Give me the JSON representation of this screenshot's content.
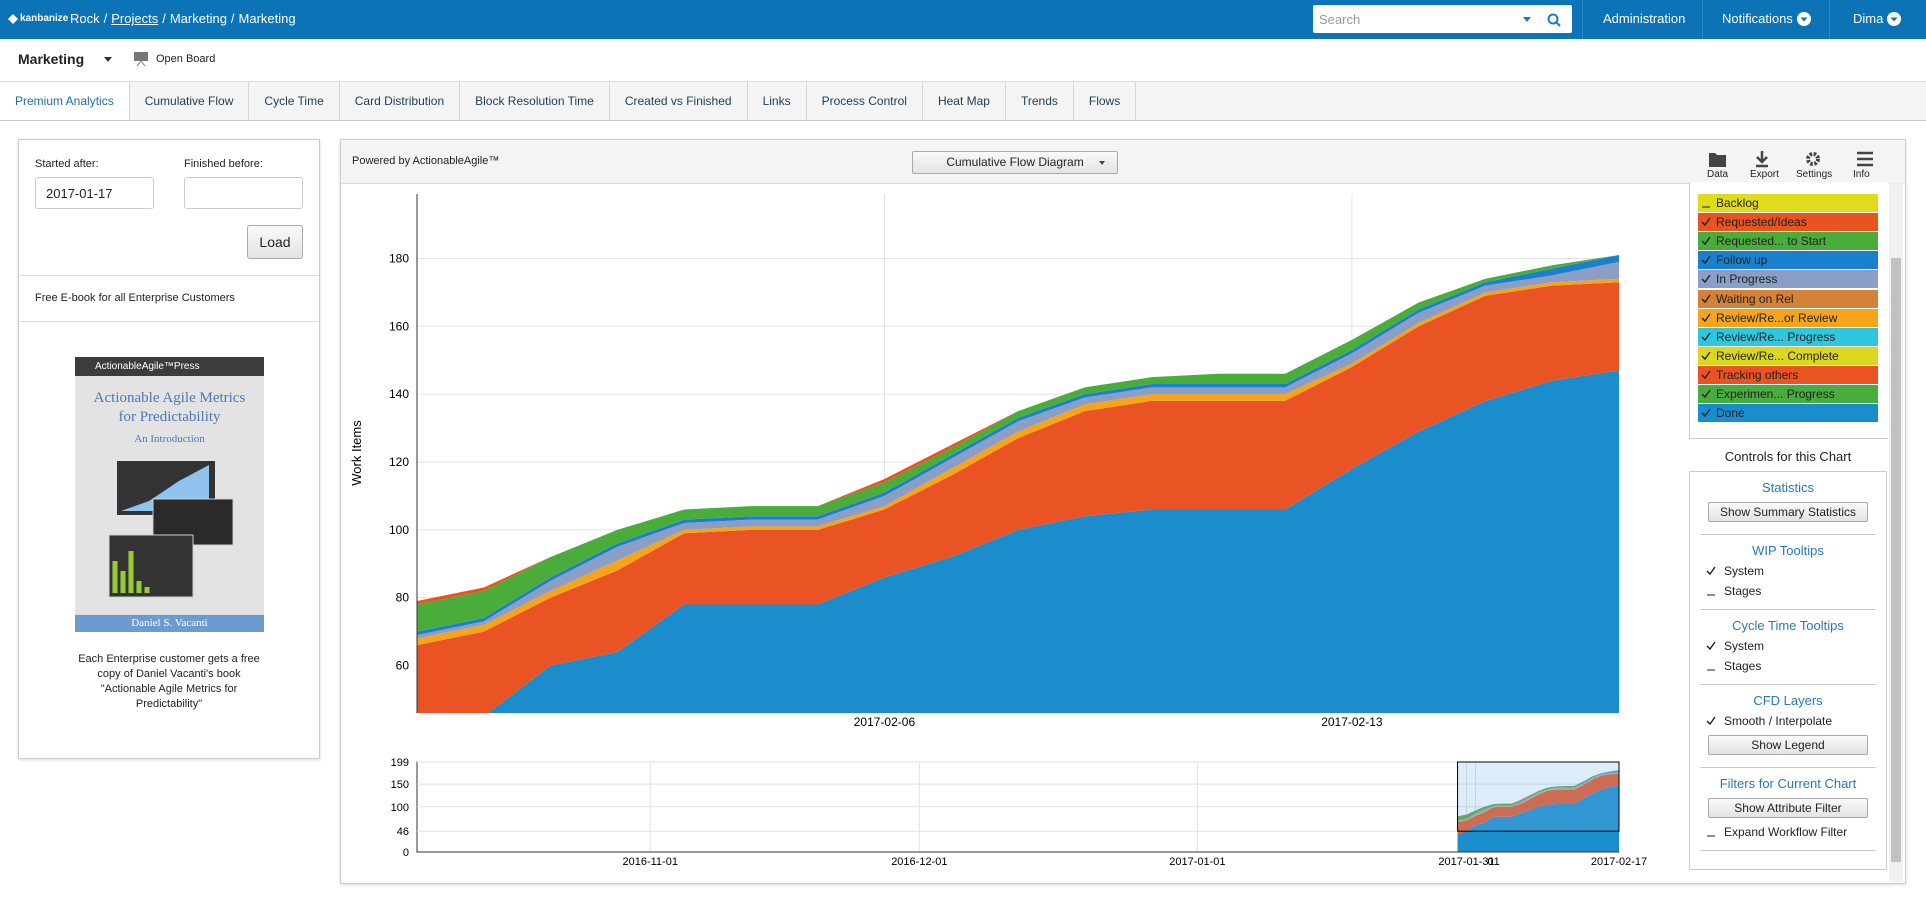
{
  "header": {
    "logo": "kanbanize",
    "breadcrumb": [
      "Rock",
      "Projects",
      "Marketing",
      "Marketing"
    ],
    "separator": "/",
    "search_placeholder": "Search",
    "nav": [
      "Administration",
      "Notifications",
      "Dima"
    ]
  },
  "subheader": {
    "board": "Marketing",
    "open_board": "Open Board"
  },
  "tabs": [
    "Premium Analytics",
    "Cumulative Flow",
    "Cycle Time",
    "Card Distribution",
    "Block Resolution Time",
    "Created vs Finished",
    "Links",
    "Process Control",
    "Heat Map",
    "Trends",
    "Flows"
  ],
  "active_tab": 0,
  "filters": {
    "started_after_label": "Started after:",
    "started_after": "2017-01-17",
    "finished_before_label": "Finished before:",
    "load": "Load"
  },
  "ebook": {
    "heading": "Free E-book for all Enterprise Customers",
    "cover": {
      "publisher": "ActionableAgile™Press",
      "title": "Actionable Agile Metrics for Predictability",
      "subtitle": "An Introduction",
      "author": "Daniel S. Vacanti"
    },
    "caption": "Each Enterprise customer gets a free copy of Daniel Vacanti's book \"Actionable Agile Metrics for Predictability\""
  },
  "toolbar": {
    "powered_by": "Powered by ActionableAgile™",
    "chart_select": "Cumulative Flow Diagram",
    "buttons": [
      "Data",
      "Export",
      "Settings",
      "Info"
    ]
  },
  "chart_data": {
    "type": "area",
    "y_label": "Work Items",
    "grid": true,
    "x": [
      "2017-01-30",
      "2017-01-31",
      "2017-02-01",
      "2017-02-02",
      "2017-02-03",
      "2017-02-04",
      "2017-02-05",
      "2017-02-06",
      "2017-02-07",
      "2017-02-08",
      "2017-02-09",
      "2017-02-10",
      "2017-02-11",
      "2017-02-12",
      "2017-02-13",
      "2017-02-14",
      "2017-02-15",
      "2017-02-16",
      "2017-02-17"
    ],
    "xlim": [
      "2017-01-30",
      "2017-02-17"
    ],
    "xticks": [
      "2017-02-06",
      "2017-02-13"
    ],
    "ylim": [
      46,
      199
    ],
    "yticks": [
      60,
      80,
      100,
      120,
      140,
      160,
      180
    ],
    "series": [
      {
        "name": "Backlog",
        "color": "#e0dc1c",
        "checked": false,
        "values": [
          null,
          null,
          null,
          null,
          null,
          null,
          null,
          null,
          null,
          null,
          null,
          null,
          null,
          null,
          null,
          null,
          null,
          null,
          null
        ]
      },
      {
        "name": "Requested/Ideas",
        "color": "#e8531f",
        "checked": true,
        "values": [
          1,
          1,
          0,
          0,
          0,
          0,
          0,
          1,
          1,
          0,
          0,
          0,
          0,
          0,
          0,
          0,
          0,
          0,
          0
        ]
      },
      {
        "name": "Requested... to Start",
        "color": "#4aad3b",
        "checked": true,
        "values": [
          8,
          8,
          6,
          4,
          3,
          3,
          3,
          3,
          2,
          2,
          2,
          2,
          3,
          3,
          3,
          2,
          1,
          1,
          0
        ]
      },
      {
        "name": "Follow up",
        "color": "#1a7fcc",
        "checked": true,
        "values": [
          1,
          1,
          1,
          1,
          1,
          1,
          1,
          1,
          1,
          1,
          1,
          1,
          1,
          1,
          1,
          1,
          1,
          2,
          2
        ]
      },
      {
        "name": "In Progress",
        "color": "#8a9ec6",
        "checked": true,
        "values": [
          1,
          1,
          3,
          4,
          2,
          2,
          2,
          3,
          3,
          3,
          2,
          2,
          2,
          2,
          3,
          3,
          2,
          2,
          5
        ]
      },
      {
        "name": "Waiting on Rel",
        "color": "#d4813a",
        "checked": true,
        "values": [
          0,
          0,
          0,
          0,
          0,
          0,
          0,
          0,
          0,
          0,
          0,
          0,
          0,
          0,
          0,
          0,
          0,
          0,
          0
        ]
      },
      {
        "name": "Review/Re...or Review",
        "color": "#f5a41b",
        "checked": true,
        "values": [
          2,
          2,
          2,
          3,
          1,
          1,
          1,
          1,
          2,
          2,
          2,
          2,
          2,
          2,
          1,
          1,
          1,
          1,
          1
        ]
      },
      {
        "name": "Review/Re... Progress",
        "color": "#2fc6de",
        "checked": true,
        "values": [
          0,
          0,
          0,
          0,
          0,
          0,
          0,
          0,
          0,
          0,
          0,
          0,
          0,
          0,
          0,
          0,
          0,
          0,
          0
        ]
      },
      {
        "name": "Review/Re... Complete",
        "color": "#d9d81f",
        "checked": true,
        "values": [
          0,
          0,
          0,
          0,
          0,
          0,
          0,
          0,
          0,
          0,
          0,
          0,
          0,
          0,
          0,
          0,
          0,
          0,
          0
        ]
      },
      {
        "name": "Tracking others",
        "color": "#ea5424",
        "checked": true,
        "values": [
          26,
          25,
          20,
          24,
          21,
          22,
          22,
          20,
          24,
          27,
          31,
          32,
          32,
          32,
          30,
          31,
          31,
          28,
          26
        ]
      },
      {
        "name": "Experimen... Progress",
        "color": "#48ad3c",
        "checked": true,
        "values": [
          0,
          0,
          0,
          0,
          0,
          0,
          0,
          0,
          0,
          0,
          0,
          0,
          0,
          0,
          0,
          0,
          0,
          0,
          0
        ]
      },
      {
        "name": "Done",
        "color": "#1b8ccc",
        "checked": true,
        "values": [
          40,
          45,
          60,
          64,
          78,
          78,
          78,
          86,
          92,
          100,
          104,
          106,
          106,
          106,
          118,
          129,
          138,
          144,
          147
        ]
      }
    ]
  },
  "overview": {
    "xlim": [
      "2016-10-06",
      "2017-02-17"
    ],
    "xticks": [
      "2016-11-01",
      "2016-12-01",
      "2017-01-01",
      "2017-01-31",
      {
        "value": "2017-02-01",
        "label": "01"
      },
      "2017-02-17"
    ],
    "ylim": [
      0,
      199
    ],
    "yticks": [
      0,
      46,
      100,
      150,
      199
    ]
  },
  "controls": {
    "title": "Controls for this Chart",
    "sections": [
      {
        "title": "Statistics",
        "items": [
          {
            "button": "Show Summary Statistics"
          }
        ]
      },
      {
        "title": "WIP Tooltips",
        "items": [
          {
            "label": "System",
            "checked": true
          },
          {
            "label": "Stages",
            "checked": false
          }
        ]
      },
      {
        "title": "Cycle Time Tooltips",
        "items": [
          {
            "label": "System",
            "checked": true
          },
          {
            "label": "Stages",
            "checked": false
          }
        ]
      },
      {
        "title": "CFD Layers",
        "items": [
          {
            "label": "Smooth / Interpolate",
            "checked": true
          },
          {
            "button": "Show Legend"
          }
        ]
      },
      {
        "title": "Filters for Current Chart",
        "items": [
          {
            "button": "Show Attribute Filter"
          },
          {
            "label": "Expand Workflow Filter",
            "checked": false
          }
        ]
      }
    ]
  }
}
